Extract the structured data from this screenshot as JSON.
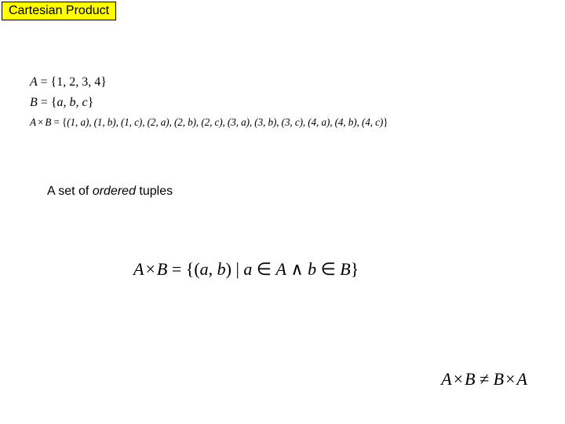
{
  "title": "Cartesian Product",
  "setA": {
    "lhs": "A",
    "eq": "=",
    "open": "{",
    "members": "1, 2, 3, 4",
    "close": "}"
  },
  "setB": {
    "lhs": "B",
    "eq": "=",
    "open": "{",
    "members": "a, b, c",
    "close": "}"
  },
  "product": {
    "lhsA": "A",
    "times": "×",
    "lhsB": "B",
    "eq": "=",
    "open": "{",
    "pairs": "(1, a), (1, b), (1, c), (2, a), (2, b), (2, c), (3, a), (3, b), (3, c), (4, a), (4, b), (4, c)",
    "close": "}"
  },
  "caption": {
    "t1": "A set of ",
    "em": "ordered",
    "t2": " tuples"
  },
  "definition": {
    "lhsA": "A",
    "times": "×",
    "lhsB": "B",
    "eq": "=",
    "open": "{",
    "pairL": "(",
    "a": "a",
    "comma": ", ",
    "b": "b",
    "pairR": ")",
    "bar": " | ",
    "aIn": "a",
    "inSym1": " ∈ ",
    "Aset": "A",
    "and": " ∧ ",
    "bIn": "b",
    "inSym2": " ∈ ",
    "Bset": "B",
    "close": "}"
  },
  "inequality": {
    "A1": "A",
    "times1": "×",
    "B1": "B",
    "neq": " ≠ ",
    "B2": "B",
    "times2": "×",
    "A2": "A"
  },
  "style": {
    "title_bg": "#ffff00",
    "title_border": "#000000",
    "page_bg": "#ffffff",
    "math_font": "Times New Roman",
    "ui_font": "Comic Sans MS",
    "title_fontsize": 16,
    "eq_small_fontsize": 16,
    "eq_product_fontsize": 13.2,
    "caption_fontsize": 16,
    "def_fontsize": 22,
    "neq_fontsize": 22
  }
}
